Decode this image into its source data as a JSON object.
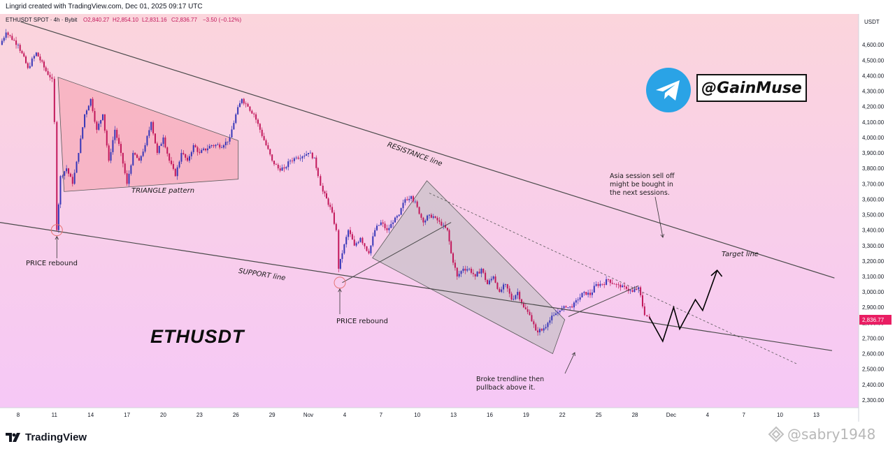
{
  "header": {
    "credit": "Lingrid created with TradingView.com, Dec 01, 2025 09:17 UTC"
  },
  "legend": {
    "symbol": "ETHUSDT SPOT · 4h · Bybit",
    "open": "O2,840.27",
    "high": "H2,854.10",
    "low": "L2,831.16",
    "close": "C2,836.77",
    "change": "−3.50 (−0.12%)"
  },
  "colors": {
    "background_top": "#fbd3dd",
    "background_bottom": "#f7c6f4",
    "candle_up": "#3636b8",
    "candle_down": "#c2185b",
    "price_badge": "#e91e63",
    "triangle_fill": "#f7a9b8",
    "channel_fill": "#c8c0c8",
    "telegram": "#2aa3e6"
  },
  "chart_data": {
    "type": "candlestick",
    "currency": "USDT",
    "current_price": 2836.77,
    "ylim": [
      2250,
      4800
    ],
    "y_ticks": [
      "4,600.00",
      "4,500.00",
      "4,400.00",
      "4,300.00",
      "4,200.00",
      "4,100.00",
      "4,000.00",
      "3,900.00",
      "3,800.00",
      "3,700.00",
      "3,600.00",
      "3,500.00",
      "3,400.00",
      "3,300.00",
      "3,200.00",
      "3,100.00",
      "3,000.00",
      "2,900.00",
      "2,800.00",
      "2,700.00",
      "2,600.00",
      "2,500.00",
      "2,400.00",
      "2,300.00"
    ],
    "y_tick_values": [
      4600,
      4500,
      4400,
      4300,
      4200,
      4100,
      4000,
      3900,
      3800,
      3700,
      3600,
      3500,
      3400,
      3300,
      3200,
      3100,
      3000,
      2900,
      2800,
      2700,
      2600,
      2500,
      2400,
      2300
    ],
    "x_ticks": [
      "8",
      "11",
      "14",
      "17",
      "20",
      "23",
      "26",
      "29",
      "Nov",
      "4",
      "7",
      "10",
      "13",
      "16",
      "19",
      "22",
      "25",
      "28",
      "Dec",
      "4",
      "7",
      "10",
      "13"
    ],
    "x_tick_days": [
      0,
      3,
      6,
      9,
      12,
      15,
      18,
      21,
      24,
      27,
      30,
      33,
      36,
      39,
      42,
      45,
      48,
      51,
      54,
      57,
      60,
      63,
      66
    ],
    "x_range_days": [
      -1.5,
      69.5
    ],
    "price_path": [
      [
        -1.5,
        4600
      ],
      [
        -1,
        4680
      ],
      [
        0,
        4600
      ],
      [
        0.8,
        4450
      ],
      [
        1.5,
        4550
      ],
      [
        2.3,
        4430
      ],
      [
        2.8,
        4380
      ],
      [
        3.0,
        4100
      ],
      [
        3.2,
        3400
      ],
      [
        3.5,
        3750
      ],
      [
        4,
        3800
      ],
      [
        4.5,
        3700
      ],
      [
        5,
        3900
      ],
      [
        5.5,
        4150
      ],
      [
        6,
        4250
      ],
      [
        6.5,
        4050
      ],
      [
        7,
        4150
      ],
      [
        7.5,
        3850
      ],
      [
        8,
        4050
      ],
      [
        8.5,
        3900
      ],
      [
        9,
        3700
      ],
      [
        9.5,
        3900
      ],
      [
        10,
        3850
      ],
      [
        10.5,
        3950
      ],
      [
        11,
        4100
      ],
      [
        11.5,
        3900
      ],
      [
        12,
        4000
      ],
      [
        12.5,
        3850
      ],
      [
        13,
        3750
      ],
      [
        13.5,
        3900
      ],
      [
        14,
        3850
      ],
      [
        14.5,
        3950
      ],
      [
        15,
        3900
      ],
      [
        16,
        3950
      ],
      [
        17,
        3950
      ],
      [
        17.5,
        4000
      ],
      [
        18,
        4150
      ],
      [
        18.5,
        4250
      ],
      [
        19,
        4200
      ],
      [
        19.5,
        4150
      ],
      [
        20,
        4050
      ],
      [
        20.5,
        3950
      ],
      [
        21,
        3850
      ],
      [
        21.5,
        3800
      ],
      [
        22,
        3800
      ],
      [
        22.5,
        3850
      ],
      [
        23,
        3870
      ],
      [
        24,
        3900
      ],
      [
        24.5,
        3870
      ],
      [
        24.8,
        3750
      ],
      [
        25.2,
        3650
      ],
      [
        25.8,
        3550
      ],
      [
        26.3,
        3400
      ],
      [
        26.5,
        3150
      ],
      [
        26.8,
        3250
      ],
      [
        27.3,
        3400
      ],
      [
        27.8,
        3300
      ],
      [
        28.3,
        3350
      ],
      [
        29,
        3250
      ],
      [
        29.5,
        3400
      ],
      [
        30,
        3450
      ],
      [
        30.5,
        3400
      ],
      [
        31,
        3450
      ],
      [
        31.5,
        3500
      ],
      [
        32,
        3600
      ],
      [
        32.5,
        3620
      ],
      [
        33,
        3550
      ],
      [
        33.5,
        3450
      ],
      [
        34,
        3500
      ],
      [
        34.5,
        3480
      ],
      [
        35,
        3430
      ],
      [
        35.5,
        3400
      ],
      [
        35.8,
        3250
      ],
      [
        36.3,
        3100
      ],
      [
        36.8,
        3150
      ],
      [
        37.3,
        3150
      ],
      [
        37.8,
        3100
      ],
      [
        38.3,
        3150
      ],
      [
        38.8,
        3050
      ],
      [
        39.3,
        3100
      ],
      [
        39.8,
        3000
      ],
      [
        40.3,
        3050
      ],
      [
        40.8,
        2950
      ],
      [
        41.3,
        3000
      ],
      [
        41.8,
        2900
      ],
      [
        42.3,
        2850
      ],
      [
        42.8,
        2750
      ],
      [
        43.3,
        2750
      ],
      [
        43.8,
        2800
      ],
      [
        44.3,
        2850
      ],
      [
        44.8,
        2880
      ],
      [
        45.3,
        2900
      ],
      [
        45.8,
        2900
      ],
      [
        46.3,
        2950
      ],
      [
        46.8,
        3000
      ],
      [
        47.3,
        2980
      ],
      [
        47.8,
        3050
      ],
      [
        48.3,
        3050
      ],
      [
        48.8,
        3080
      ],
      [
        49.3,
        3050
      ],
      [
        49.8,
        3030
      ],
      [
        50.3,
        3020
      ],
      [
        50.8,
        3000
      ],
      [
        51.3,
        3030
      ],
      [
        51.8,
        2850
      ],
      [
        52.2,
        2836
      ]
    ],
    "annotations": {
      "resistance": "RESISTANCE line",
      "support": "SUPPORT line",
      "triangle": "TRIANGLE pattern",
      "rebound1": "PRICE rebound",
      "rebound2": "PRICE rebound",
      "asia": "Asia session sell off\nmight be bought in\nthe next sessions.",
      "target": "Target line",
      "broke": "Broke trendline then\npullback above it."
    }
  },
  "overlay": {
    "symbol_label": "ETHUSDT",
    "telegram_handle": "@GainMuse",
    "price_badge": "2,836.77",
    "currency_label": "USDT"
  },
  "footer": {
    "brand": "TradingView",
    "watermark": "@sabry1948"
  }
}
